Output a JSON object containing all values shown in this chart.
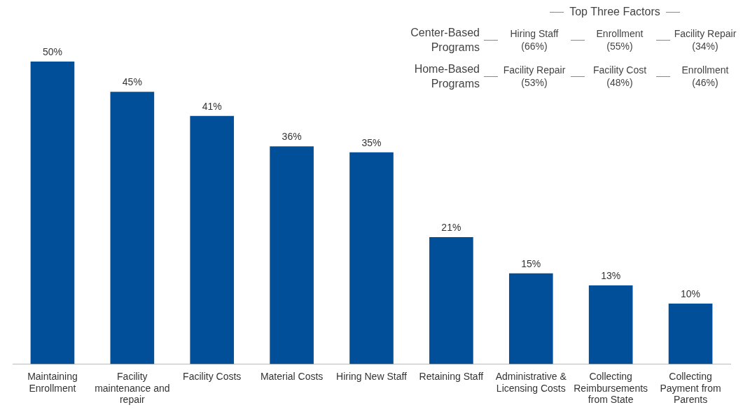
{
  "chart_data": {
    "type": "bar",
    "categories": [
      "Maintaining Enrollment",
      "Facility maintenance and repair",
      "Facility Costs",
      "Material Costs",
      "Hiring New Staff",
      "Retaining Staff",
      "Administrative & Licensing Costs",
      "Collecting Reimbursements from State",
      "Collecting Payment from Parents"
    ],
    "values": [
      50,
      45,
      41,
      36,
      35,
      21,
      15,
      13,
      10
    ],
    "value_labels": [
      "50%",
      "45%",
      "41%",
      "36%",
      "35%",
      "21%",
      "15%",
      "13%",
      "10%"
    ],
    "color": "#004f98",
    "grid": false,
    "legend": false,
    "annotations": [
      "Top Three Factors",
      "Center-Based Programs",
      "Hiring Staff (66%)",
      "Enrollment (55%)",
      "Facility Repair (34%)",
      "Home-Based Programs",
      "Facility Repair (53%)",
      "Facility Cost (48%)",
      "Enrollment (46%)"
    ]
  }
}
